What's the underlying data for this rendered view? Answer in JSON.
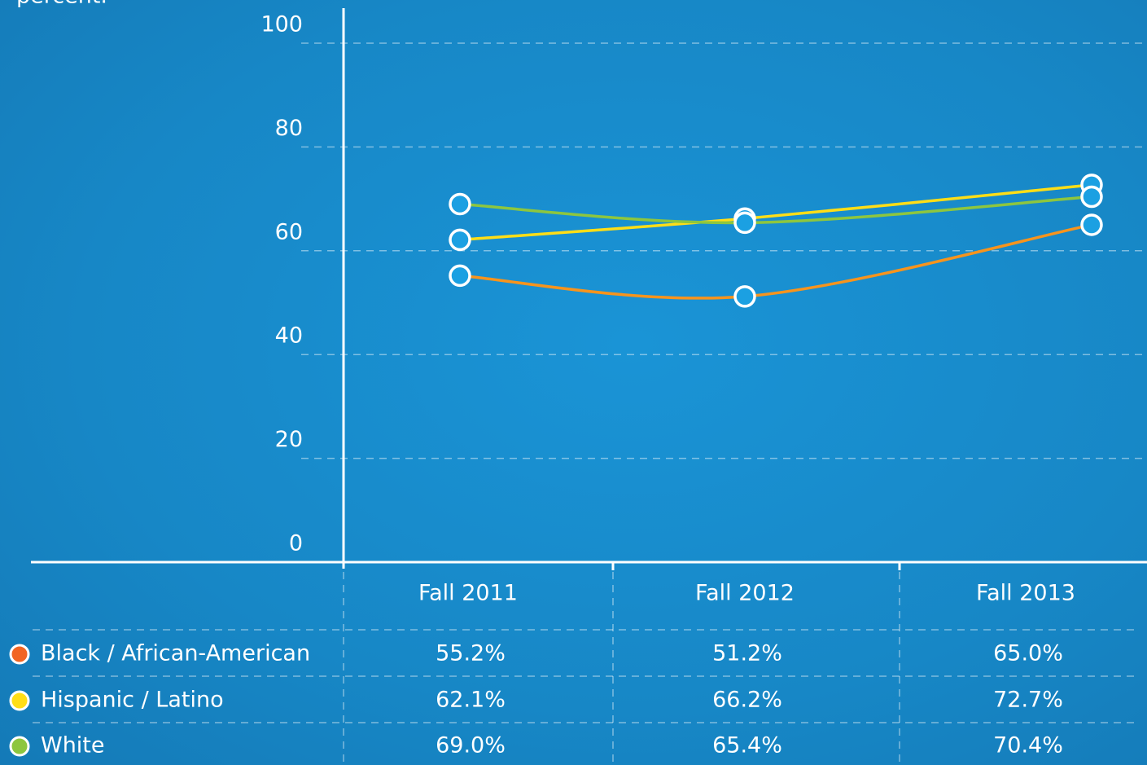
{
  "chart_data": {
    "type": "line",
    "subtitle": "percent.",
    "categories": [
      "Fall 2011",
      "Fall 2012",
      "Fall 2013"
    ],
    "series": [
      {
        "name": "Black / African-American",
        "color": "#f7941d",
        "legend_color": "#f26522",
        "values": [
          55.2,
          51.2,
          65.0
        ],
        "value_labels": [
          "55.2%",
          "51.2%",
          "65.0%"
        ]
      },
      {
        "name": "Hispanic / Latino",
        "color": "#ffde17",
        "legend_color": "#ffde17",
        "values": [
          62.1,
          66.2,
          72.7
        ],
        "value_labels": [
          "62.1%",
          "66.2%",
          "72.7%"
        ]
      },
      {
        "name": "White",
        "color": "#8dc63f",
        "legend_color": "#8dc63f",
        "values": [
          69.0,
          65.4,
          70.4
        ],
        "value_labels": [
          "69.0%",
          "65.4%",
          "70.4%"
        ]
      }
    ],
    "ylim": [
      0,
      100
    ],
    "yticks": [
      0,
      20,
      40,
      60,
      80,
      100
    ],
    "grid": true,
    "marker_color": "#1ba0e2"
  }
}
